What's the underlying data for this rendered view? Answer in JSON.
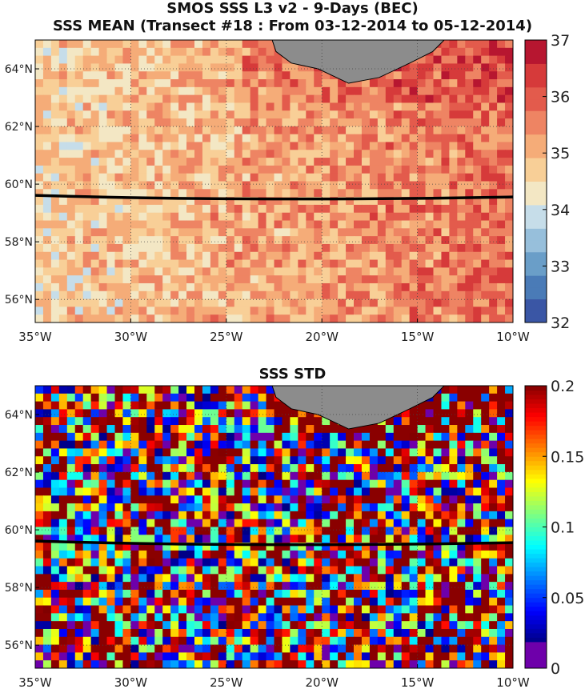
{
  "figure": {
    "title_line1": "SMOS SSS L3 v2 - 9-Days (BEC)",
    "title_line2": "SSS MEAN (Transect #18 : From 03-12-2014 to 05-12-2014)"
  },
  "panels": [
    {
      "name": "mean",
      "title": "",
      "colormap": "red-yellow-blue",
      "colorbar_ticks": [
        "32",
        "33",
        "34",
        "35",
        "36",
        "37"
      ],
      "value_range": [
        32,
        37
      ]
    },
    {
      "name": "std",
      "title": "SSS STD",
      "colormap": "jet",
      "colorbar_ticks": [
        "0",
        "0.05",
        "0.1",
        "0.15",
        "0.2"
      ],
      "value_range": [
        0,
        0.2
      ]
    }
  ],
  "lon_ticks": [
    "35°W",
    "30°W",
    "25°W",
    "20°W",
    "15°W",
    "10°W"
  ],
  "lat_ticks": [
    "64°N",
    "62°N",
    "60°N",
    "58°N",
    "56°N"
  ],
  "lon_values": [
    -35,
    -30,
    -25,
    -20,
    -15,
    -10
  ],
  "lat_values": [
    64,
    62,
    60,
    58,
    56
  ],
  "extent": {
    "lon": [
      -35,
      -10
    ],
    "lat": [
      55.2,
      65
    ]
  },
  "transect_lat": 59.5,
  "colors": {
    "land": "#8c8c8c",
    "transect": "#000000",
    "grid": "#444444"
  }
}
